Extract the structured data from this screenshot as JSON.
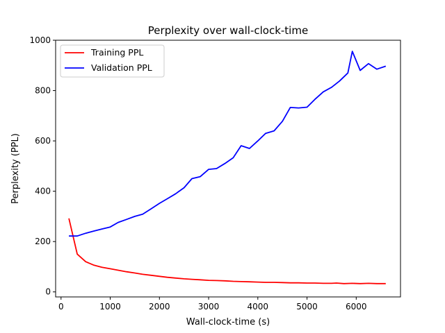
{
  "chart_data": {
    "type": "line",
    "title": "Perplexity over wall-clock-time",
    "xlabel": "Wall-clock-time (s)",
    "ylabel": "Perplexity (PPL)",
    "xlim": [
      -110,
      6900
    ],
    "ylim": [
      -20,
      1000
    ],
    "xticks": [
      0,
      1000,
      2000,
      3000,
      4000,
      5000,
      6000
    ],
    "yticks": [
      0,
      200,
      400,
      600,
      800,
      1000
    ],
    "grid": false,
    "legend_position": "top-left",
    "series": [
      {
        "name": "Training PPL",
        "color": "#ff0000",
        "x": [
          160,
          330,
          500,
          670,
          830,
          1000,
          1160,
          1330,
          1500,
          1660,
          1830,
          2000,
          2160,
          2330,
          2500,
          2660,
          2830,
          3000,
          3160,
          3330,
          3500,
          3660,
          3830,
          4000,
          4160,
          4330,
          4500,
          4660,
          4830,
          5000,
          5160,
          5330,
          5500,
          5600,
          5750,
          5920,
          6080,
          6250,
          6420,
          6600
        ],
        "y": [
          292,
          150,
          120,
          106,
          98,
          92,
          86,
          80,
          75,
          70,
          66,
          62,
          58,
          55,
          52,
          50,
          48,
          46,
          45,
          44,
          42,
          41,
          40,
          39,
          38,
          38,
          37,
          36,
          36,
          35,
          35,
          34,
          34,
          35,
          33,
          34,
          33,
          34,
          33,
          33
        ]
      },
      {
        "name": "Validation PPL",
        "color": "#0000ff",
        "x": [
          160,
          330,
          500,
          670,
          830,
          1000,
          1160,
          1330,
          1500,
          1660,
          1830,
          2000,
          2160,
          2330,
          2500,
          2660,
          2830,
          3000,
          3160,
          3330,
          3500,
          3660,
          3830,
          4000,
          4160,
          4330,
          4500,
          4660,
          4830,
          5000,
          5160,
          5330,
          5500,
          5660,
          5830,
          5920,
          6080,
          6250,
          6420,
          6600
        ],
        "y": [
          222,
          222,
          233,
          242,
          250,
          258,
          276,
          288,
          300,
          309,
          330,
          352,
          370,
          390,
          414,
          450,
          458,
          487,
          490,
          510,
          533,
          581,
          570,
          600,
          630,
          640,
          678,
          733,
          731,
          734,
          765,
          795,
          813,
          838,
          870,
          956,
          880,
          907,
          885,
          897
        ]
      }
    ]
  }
}
